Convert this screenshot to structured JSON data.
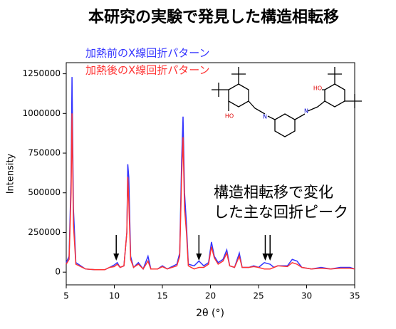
{
  "chart_data": {
    "type": "line",
    "title": "本研究の実験で発見した構造相転移",
    "x_label": "2θ (°)",
    "y_label": "Intensity",
    "x": [
      5,
      5.3,
      5.5,
      5.6,
      5.75,
      6,
      7,
      8,
      9,
      9.5,
      10,
      10.3,
      10.6,
      11,
      11.3,
      11.4,
      11.5,
      11.7,
      12,
      12.5,
      13,
      13.5,
      13.8,
      14.5,
      15,
      15.5,
      16.5,
      16.8,
      17,
      17.15,
      17.3,
      17.5,
      17.7,
      18.3,
      18.8,
      19.3,
      19.8,
      20.1,
      20.4,
      20.8,
      21.3,
      21.7,
      22,
      22.5,
      23,
      23.3,
      24,
      24.5,
      25,
      25.6,
      26.2,
      26.6,
      27,
      28,
      28.5,
      29,
      29.5,
      30.5,
      31.5,
      32.5,
      33.5,
      34.5,
      35
    ],
    "series": [
      {
        "name": "加熱前のX線回折パターン",
        "color": "#3333ff",
        "values": [
          60000,
          100000,
          600000,
          1230000,
          400000,
          60000,
          20000,
          15000,
          15000,
          30000,
          45000,
          60000,
          30000,
          40000,
          250000,
          680000,
          600000,
          100000,
          30000,
          60000,
          20000,
          100000,
          20000,
          20000,
          40000,
          20000,
          50000,
          120000,
          700000,
          980000,
          500000,
          300000,
          50000,
          40000,
          70000,
          40000,
          60000,
          190000,
          100000,
          60000,
          80000,
          140000,
          40000,
          30000,
          120000,
          30000,
          30000,
          40000,
          30000,
          60000,
          50000,
          30000,
          40000,
          40000,
          80000,
          70000,
          30000,
          20000,
          30000,
          20000,
          30000,
          30000,
          20000
        ]
      },
      {
        "name": "加熱後のX線回折パターン",
        "color": "#ff3333",
        "values": [
          50000,
          80000,
          500000,
          1000000,
          300000,
          50000,
          20000,
          15000,
          15000,
          30000,
          35000,
          50000,
          30000,
          40000,
          250000,
          600000,
          450000,
          80000,
          30000,
          50000,
          20000,
          70000,
          20000,
          20000,
          35000,
          20000,
          40000,
          100000,
          600000,
          850000,
          400000,
          250000,
          40000,
          20000,
          30000,
          30000,
          50000,
          160000,
          90000,
          50000,
          70000,
          120000,
          40000,
          30000,
          100000,
          30000,
          30000,
          35000,
          30000,
          20000,
          20000,
          30000,
          40000,
          35000,
          60000,
          50000,
          30000,
          20000,
          25000,
          20000,
          25000,
          25000,
          20000
        ]
      }
    ],
    "xlim": [
      5,
      35
    ],
    "xticks": [
      5,
      10,
      15,
      20,
      25,
      30,
      35
    ],
    "ylim": [
      -80000,
      1320000
    ],
    "yticks": [
      0,
      250000,
      500000,
      750000,
      1000000,
      1250000
    ],
    "annotation": [
      "構造相転移で変化",
      "した主な回折ピーク"
    ],
    "annotation_arrows_x": [
      10.2,
      18.8,
      25.7,
      26.2
    ],
    "molecule_labels": [
      "HO",
      "N",
      "N",
      "HO"
    ]
  }
}
